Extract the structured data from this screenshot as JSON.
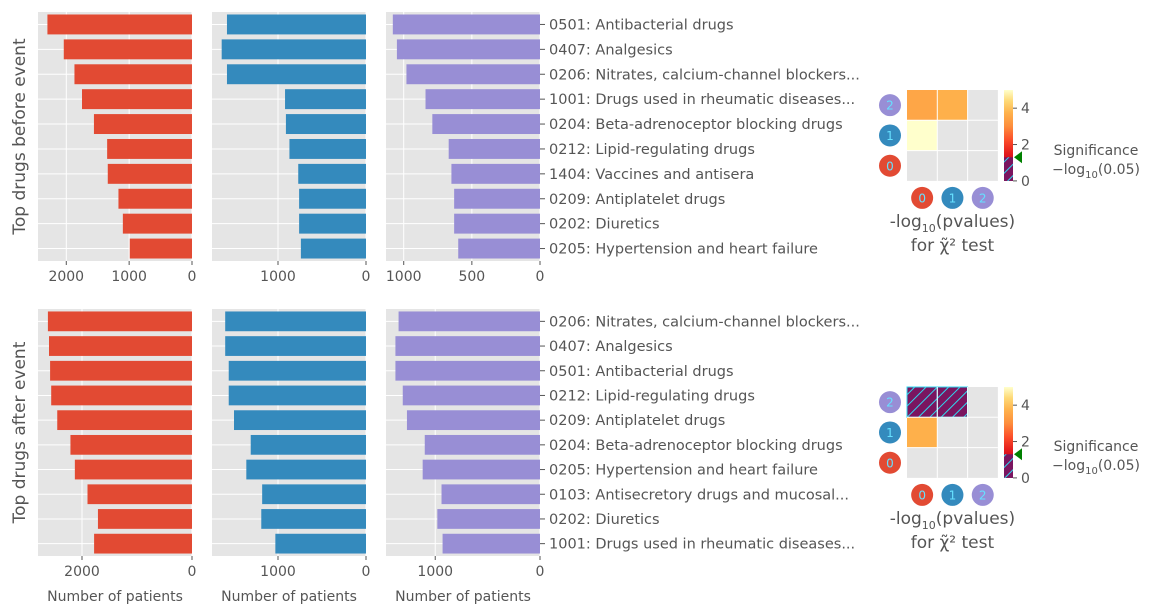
{
  "colors": {
    "series": [
      "#E24A33",
      "#348ABD",
      "#988ED5"
    ],
    "panel_bg": "#E5E5E5",
    "grid": "#FFFFFF",
    "text": "#555555",
    "hatch_line": "#2ED8F0",
    "hatch_fill": "#7A1560",
    "sig_marker": "#008000",
    "badge_text": "#66E0FF"
  },
  "common": {
    "xlabel": "Number of patients",
    "heat_xlabel_main": "-log",
    "heat_xlabel_sub": "10",
    "heat_xlabel_tail": "(pvalues)",
    "heat_xlabel2": "for χ̃² test",
    "sig_label": "Significance",
    "sig_formula_main": "−log",
    "sig_formula_sub": "10",
    "sig_formula_tail": "(0.05)",
    "cbar_ticks": [
      "0",
      "2",
      "4"
    ],
    "heat_badges": [
      "0",
      "1",
      "2"
    ]
  },
  "chart_data": [
    {
      "type": "bar",
      "orientation": "horizontal",
      "ylabel": "Top drugs before event",
      "categories": [
        "0501: Antibacterial drugs",
        "0407: Analgesics",
        "0206: Nitrates, calcium-channel blockers...",
        "1001: Drugs used in rheumatic diseases...",
        "0204: Beta-adrenoceptor blocking drugs",
        "0212: Lipid-regulating drugs",
        "1404: Vaccines and antisera",
        "0209: Antiplatelet drugs",
        "0202: Diuretics",
        "0205: Hypertension and heart failure"
      ],
      "series": [
        {
          "values": [
            2300,
            2040,
            1870,
            1750,
            1560,
            1350,
            1340,
            1170,
            1100,
            990
          ],
          "xlim": [
            2450,
            0
          ],
          "xticks": [
            2000,
            1000,
            0
          ]
        },
        {
          "values": [
            1580,
            1640,
            1580,
            920,
            910,
            870,
            770,
            760,
            760,
            740
          ],
          "xlim": [
            1750,
            0
          ],
          "xticks": [
            1000,
            0
          ]
        },
        {
          "values": [
            1080,
            1050,
            980,
            840,
            790,
            670,
            650,
            630,
            630,
            600
          ],
          "xlim": [
            1130,
            0
          ],
          "xticks": [
            1000,
            500,
            0
          ]
        }
      ],
      "heatmap": {
        "values": [
          [
            null,
            null,
            null
          ],
          [
            5.0,
            null,
            null
          ],
          [
            3.5,
            3.7,
            null
          ]
        ],
        "hatched": [],
        "sig_threshold": 1.3,
        "vmax": 5
      }
    },
    {
      "type": "bar",
      "orientation": "horizontal",
      "ylabel": "Top drugs after event",
      "categories": [
        "0206: Nitrates, calcium-channel blockers...",
        "0407: Analgesics",
        "0501: Antibacterial drugs",
        "0212: Lipid-regulating drugs",
        "0209: Antiplatelet drugs",
        "0204: Beta-adrenoceptor blocking drugs",
        "0205: Hypertension and heart failure",
        "0103: Antisecretory drugs and mucosal...",
        "0202: Diuretics",
        "1001: Drugs used in rheumatic diseases..."
      ],
      "series": [
        {
          "values": [
            2620,
            2600,
            2580,
            2560,
            2450,
            2210,
            2130,
            1900,
            1710,
            1780
          ],
          "xlim": [
            2800,
            0
          ],
          "xticks": [
            2000,
            0
          ]
        },
        {
          "values": [
            1600,
            1600,
            1560,
            1560,
            1500,
            1310,
            1360,
            1180,
            1190,
            1030
          ],
          "xlim": [
            1750,
            0
          ],
          "xticks": [
            1000,
            0
          ]
        },
        {
          "values": [
            1350,
            1380,
            1380,
            1310,
            1270,
            1100,
            1120,
            940,
            980,
            930
          ],
          "xlim": [
            1470,
            0
          ],
          "xticks": [
            1000,
            0
          ]
        }
      ],
      "heatmap": {
        "values": [
          [
            null,
            null,
            null
          ],
          [
            3.7,
            null,
            null
          ],
          [
            0.5,
            0.5,
            null
          ]
        ],
        "hatched": [
          [
            2,
            0
          ],
          [
            2,
            1
          ]
        ],
        "sig_threshold": 1.3,
        "vmax": 5
      }
    }
  ]
}
